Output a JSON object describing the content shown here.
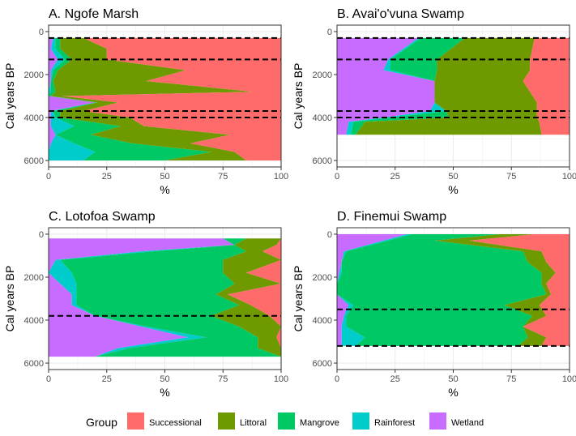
{
  "chart_data": [
    {
      "type": "area",
      "stacking": "percent",
      "title": "A. Ngofe Marsh",
      "xlabel": "%",
      "ylabel": "Cal years BP",
      "xlim": [
        0,
        100
      ],
      "ylim": [
        6300,
        -300
      ],
      "y_reversed": true,
      "xticks": [
        0,
        25,
        50,
        75,
        100
      ],
      "yticks": [
        0,
        2000,
        4000,
        6000
      ],
      "grid": true,
      "hlines": [
        300,
        1300,
        3700,
        4000
      ],
      "depth": [
        300,
        800,
        1300,
        1800,
        2300,
        2800,
        3000,
        3300,
        3700,
        4000,
        4400,
        4800,
        5200,
        5600,
        6000
      ],
      "series": [
        {
          "name": "Wetland",
          "values": [
            2,
            1,
            4,
            1,
            1,
            0,
            0,
            20,
            1,
            1,
            1,
            3,
            1,
            0,
            0
          ]
        },
        {
          "name": "Rainforest",
          "values": [
            1,
            2,
            3,
            1,
            0,
            1,
            0,
            0,
            1,
            2,
            10,
            0,
            10,
            20,
            15
          ]
        },
        {
          "name": "Mangrove",
          "values": [
            2,
            2,
            3,
            2,
            1,
            2,
            1,
            1,
            3,
            2,
            20,
            15,
            25,
            50,
            35
          ]
        },
        {
          "name": "Littoral",
          "values": [
            10,
            20,
            15,
            55,
            40,
            85,
            5,
            9,
            10,
            30,
            10,
            60,
            25,
            10,
            35
          ]
        },
        {
          "name": "Successional",
          "values": [
            85,
            75,
            75,
            41,
            58,
            12,
            94,
            70,
            85,
            65,
            59,
            22,
            39,
            20,
            15
          ]
        }
      ]
    },
    {
      "type": "area",
      "stacking": "percent",
      "title": "B. Avai'o'vuna Swamp",
      "xlabel": "%",
      "ylabel": "Cal years BP",
      "xlim": [
        0,
        100
      ],
      "ylim": [
        6300,
        -300
      ],
      "y_reversed": true,
      "xticks": [
        0,
        25,
        50,
        75,
        100
      ],
      "yticks": [
        0,
        2000,
        4000,
        6000
      ],
      "grid": true,
      "hlines": [
        300,
        1300,
        3700,
        4000
      ],
      "depth": [
        300,
        1300,
        1800,
        2300,
        3300,
        3700,
        4000,
        4200,
        4800
      ],
      "series": [
        {
          "name": "Wetland",
          "values": [
            35,
            22,
            20,
            42,
            42,
            40,
            20,
            5,
            4
          ]
        },
        {
          "name": "Rainforest",
          "values": [
            1,
            1,
            3,
            0,
            0,
            7,
            3,
            2,
            2
          ]
        },
        {
          "name": "Mangrove",
          "values": [
            19,
            20,
            20,
            0,
            0,
            0,
            25,
            5,
            2
          ]
        },
        {
          "name": "Littoral",
          "values": [
            30,
            40,
            40,
            38,
            44,
            39,
            38,
            75,
            80
          ]
        },
        {
          "name": "Successional",
          "values": [
            15,
            17,
            17,
            20,
            14,
            14,
            14,
            13,
            12
          ]
        }
      ]
    },
    {
      "type": "area",
      "stacking": "percent",
      "title": "C. Lotofoa Swamp",
      "xlabel": "%",
      "ylabel": "Cal years BP",
      "xlim": [
        0,
        100
      ],
      "ylim": [
        6300,
        -300
      ],
      "y_reversed": true,
      "xticks": [
        0,
        25,
        50,
        75,
        100
      ],
      "yticks": [
        0,
        2000,
        4000,
        6000
      ],
      "grid": true,
      "hlines": [
        3800
      ],
      "depth": [
        200,
        500,
        800,
        1200,
        1800,
        2300,
        2800,
        3300,
        3800,
        4300,
        4800,
        5300,
        5700
      ],
      "series": [
        {
          "name": "Wetland",
          "values": [
            75,
            80,
            40,
            3,
            0,
            5,
            10,
            10,
            20,
            40,
            60,
            30,
            20
          ]
        },
        {
          "name": "Rainforest",
          "values": [
            0,
            0,
            5,
            2,
            10,
            7,
            2,
            2,
            0,
            2,
            8,
            5,
            0
          ]
        },
        {
          "name": "Mangrove",
          "values": [
            10,
            0,
            40,
            70,
            65,
            68,
            60,
            70,
            50,
            40,
            22,
            55,
            80
          ]
        },
        {
          "name": "Littoral",
          "values": [
            15,
            18,
            7,
            25,
            10,
            20,
            5,
            5,
            25,
            18,
            8,
            10,
            0
          ]
        },
        {
          "name": "Successional",
          "values": [
            0,
            2,
            8,
            0,
            15,
            0,
            23,
            13,
            5,
            0,
            2,
            0,
            0
          ]
        }
      ]
    },
    {
      "type": "area",
      "stacking": "percent",
      "title": "D. Finemui Swamp",
      "xlabel": "%",
      "ylabel": "Cal years BP",
      "xlim": [
        0,
        100
      ],
      "ylim": [
        6300,
        -300
      ],
      "y_reversed": true,
      "xticks": [
        0,
        25,
        50,
        75,
        100
      ],
      "yticks": [
        0,
        2000,
        4000,
        6000
      ],
      "grid": true,
      "hlines": [
        3500,
        5200
      ],
      "depth": [
        0,
        300,
        800,
        1300,
        1800,
        2300,
        2800,
        3300,
        3800,
        4300,
        4800,
        5200
      ],
      "series": [
        {
          "name": "Wetland",
          "values": [
            30,
            20,
            3,
            2,
            1,
            0,
            0,
            5,
            3,
            2,
            2,
            2
          ]
        },
        {
          "name": "Rainforest",
          "values": [
            2,
            2,
            1,
            0,
            1,
            0,
            0,
            2,
            1,
            2,
            10,
            6
          ]
        },
        {
          "name": "Mangrove",
          "values": [
            38,
            20,
            76,
            80,
            86,
            88,
            90,
            65,
            80,
            76,
            70,
            70
          ]
        },
        {
          "name": "Littoral",
          "values": [
            15,
            15,
            8,
            8,
            6,
            2,
            2,
            15,
            6,
            0,
            8,
            10
          ]
        },
        {
          "name": "Successional",
          "values": [
            15,
            43,
            12,
            10,
            6,
            10,
            8,
            13,
            10,
            20,
            10,
            12
          ]
        }
      ]
    }
  ],
  "legend": {
    "title": "Group",
    "position": "bottom",
    "items": [
      {
        "name": "Successional",
        "color": "#F8766D"
      },
      {
        "name": "Littoral",
        "color": "#7CAE00"
      },
      {
        "name": "Mangrove",
        "color": "#00C87A"
      },
      {
        "name": "Rainforest",
        "color": "#00C8CC"
      },
      {
        "name": "Wetland",
        "color": "#C77CFF"
      }
    ]
  },
  "colors": {
    "Successional": "#FF6B6B",
    "Littoral": "#6E9A00",
    "Mangrove": "#00C864",
    "Rainforest": "#00CCCC",
    "Wetland": "#C86CFF",
    "panel_border": "#333333",
    "grid": "#EBEBEB",
    "reference_line": "#000000"
  }
}
